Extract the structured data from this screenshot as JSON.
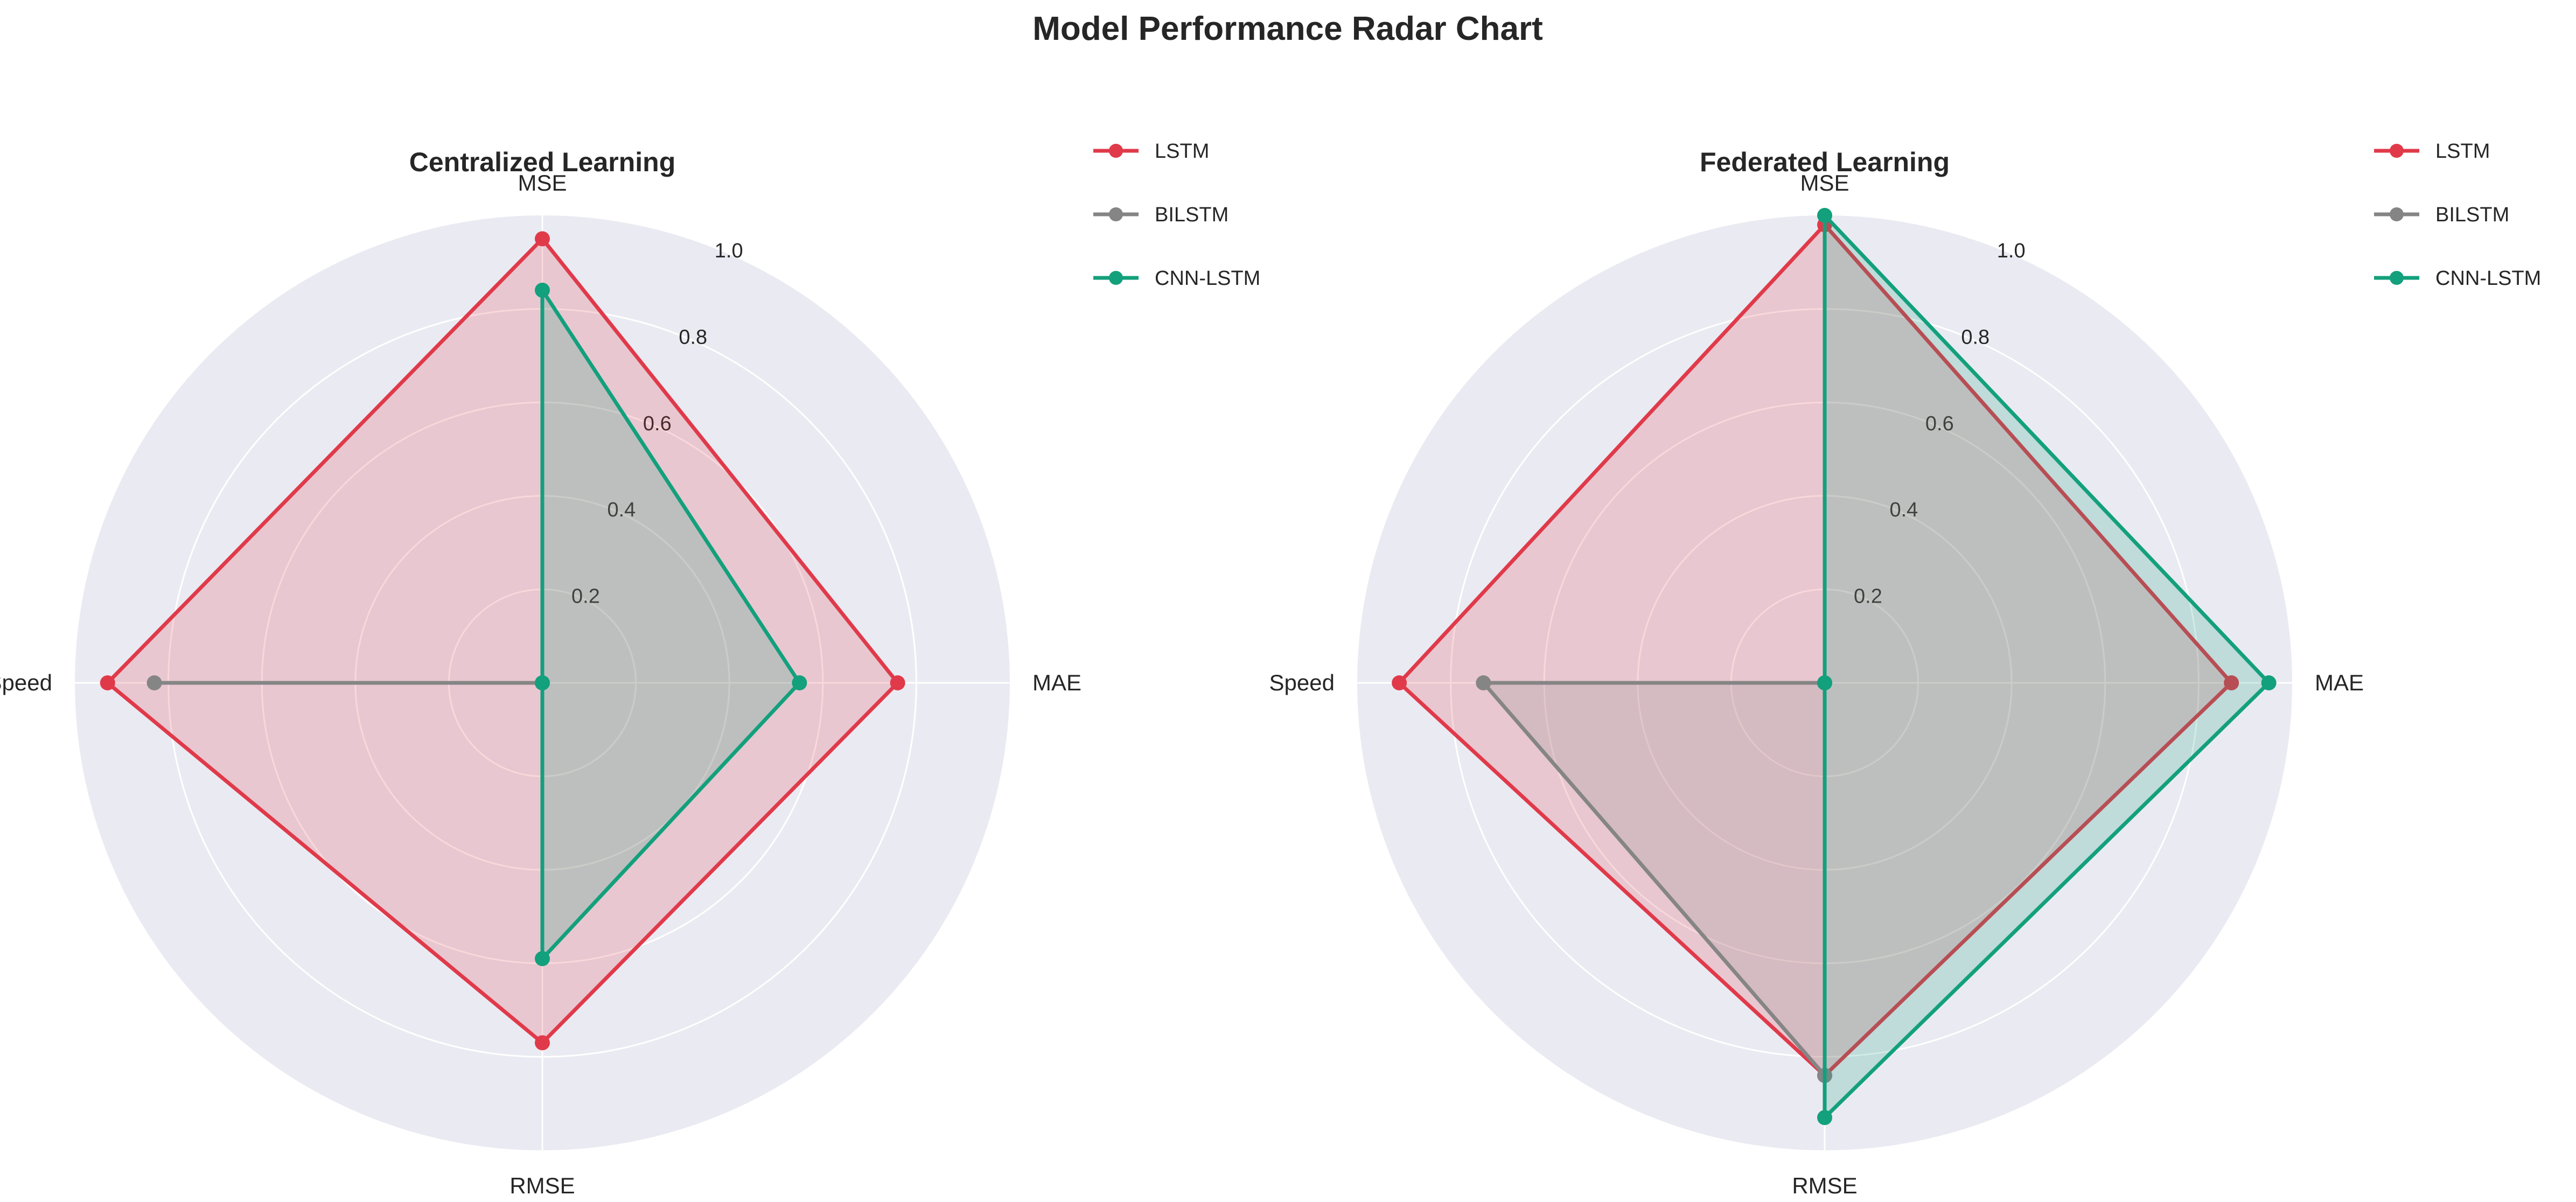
{
  "figure": {
    "title": "Model Performance Radar Chart",
    "background": "#ffffff",
    "plot_background": "#eaeaf2",
    "grid_color": "#ffffff"
  },
  "chart_data": [
    {
      "type": "radar",
      "title": "Centralized Learning",
      "axes": [
        "MSE",
        "MAE",
        "RMSE",
        "Speed"
      ],
      "rlim": [
        0,
        1.0
      ],
      "r_ticks": [
        0.2,
        0.4,
        0.6,
        0.8,
        1.0
      ],
      "r_tick_labels": [
        "0.2",
        "0.4",
        "0.6",
        "0.8",
        "1.0"
      ],
      "grid": true,
      "legend_position": "upper-right-outside",
      "series": [
        {
          "name": "LSTM",
          "color": "#e03a4a",
          "values": [
            0.95,
            0.76,
            0.77,
            0.93
          ],
          "fill": true
        },
        {
          "name": "BILSTM",
          "color": "#858585",
          "values": [
            0.0,
            0.0,
            0.0,
            0.83
          ],
          "fill": true
        },
        {
          "name": "CNN-LSTM",
          "color": "#13a07c",
          "values": [
            0.84,
            0.55,
            0.59,
            0.0
          ],
          "fill": true
        }
      ]
    },
    {
      "type": "radar",
      "title": "Federated Learning",
      "axes": [
        "MSE",
        "MAE",
        "RMSE",
        "Speed"
      ],
      "rlim": [
        0,
        1.0
      ],
      "r_ticks": [
        0.2,
        0.4,
        0.6,
        0.8,
        1.0
      ],
      "r_tick_labels": [
        "0.2",
        "0.4",
        "0.6",
        "0.8",
        "1.0"
      ],
      "grid": true,
      "legend_position": "upper-right-outside",
      "series": [
        {
          "name": "LSTM",
          "color": "#e03a4a",
          "values": [
            0.98,
            0.87,
            0.84,
            0.91
          ],
          "fill": true
        },
        {
          "name": "BILSTM",
          "color": "#858585",
          "values": [
            0.0,
            0.0,
            0.84,
            0.73
          ],
          "fill": true
        },
        {
          "name": "CNN-LSTM",
          "color": "#13a07c",
          "values": [
            1.0,
            0.95,
            0.93,
            0.0
          ],
          "fill": true
        }
      ]
    }
  ]
}
